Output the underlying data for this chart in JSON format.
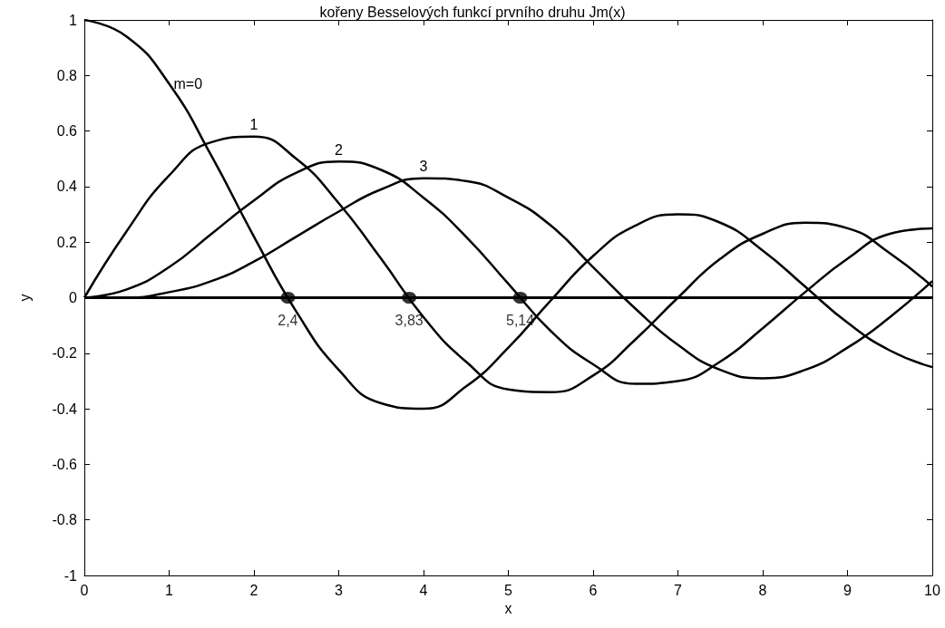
{
  "chart_data": {
    "type": "line",
    "title": "kořeny Besselových funkcí prvního druhu Jm(x)",
    "xlabel": "x",
    "ylabel": "y",
    "x": [
      0,
      0.5,
      1,
      1.5,
      2,
      2.5,
      3,
      3.5,
      4,
      4.5,
      5,
      5.5,
      6,
      6.5,
      7,
      7.5,
      8,
      8.5,
      9,
      9.5,
      10
    ],
    "series": [
      {
        "name": "m=0",
        "color": "#000000",
        "values": [
          1,
          0.94,
          0.77,
          0.51,
          0.22,
          -0.05,
          -0.26,
          -0.38,
          -0.4,
          -0.32,
          -0.18,
          -0.01,
          0.15,
          0.26,
          0.3,
          0.27,
          0.17,
          0.04,
          -0.09,
          -0.19,
          -0.25
        ]
      },
      {
        "name": "1",
        "color": "#000000",
        "values": [
          0,
          0.24,
          0.44,
          0.56,
          0.58,
          0.5,
          0.34,
          0.14,
          -0.07,
          -0.23,
          -0.33,
          -0.34,
          -0.28,
          -0.15,
          0,
          0.14,
          0.23,
          0.27,
          0.25,
          0.16,
          0.04
        ]
      },
      {
        "name": "2",
        "color": "#000000",
        "values": [
          0,
          0.03,
          0.11,
          0.23,
          0.35,
          0.45,
          0.49,
          0.46,
          0.36,
          0.22,
          0.05,
          -0.12,
          -0.24,
          -0.31,
          -0.3,
          -0.23,
          -0.11,
          0.02,
          0.14,
          0.23,
          0.25
        ]
      },
      {
        "name": "3",
        "color": "#000000",
        "values": [
          0,
          0,
          0.02,
          0.06,
          0.13,
          0.22,
          0.31,
          0.39,
          0.43,
          0.42,
          0.36,
          0.26,
          0.11,
          -0.04,
          -0.17,
          -0.26,
          -0.29,
          -0.26,
          -0.18,
          -0.07,
          0.06
        ]
      }
    ],
    "xlim": [
      0,
      10
    ],
    "xticks": [
      0,
      1,
      2,
      3,
      4,
      5,
      6,
      7,
      8,
      9,
      10
    ],
    "ylim": [
      -1,
      1
    ],
    "yticks": [
      -1,
      -0.8,
      -0.6,
      -0.4,
      -0.2,
      0,
      0.2,
      0.4,
      0.6,
      0.8,
      1
    ],
    "ref_lines": [
      {
        "axis": "y",
        "value": 0,
        "color": "#000000"
      }
    ],
    "annotations": [
      {
        "text": "2,4",
        "x": 2.4,
        "y": 0
      },
      {
        "text": "3,83",
        "x": 3.83,
        "y": 0
      },
      {
        "text": "5,14",
        "x": 5.14,
        "y": 0
      }
    ],
    "grid": false,
    "legend": false,
    "marker": "none",
    "line_style": "solid"
  }
}
